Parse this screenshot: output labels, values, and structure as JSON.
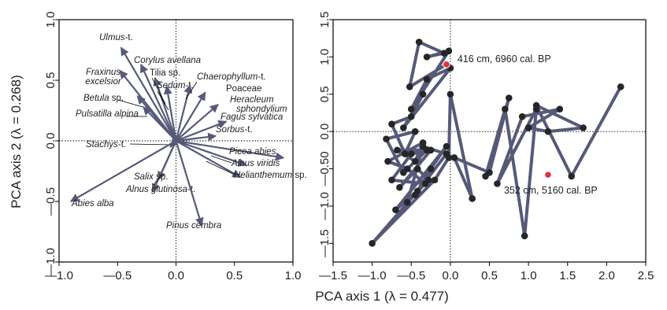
{
  "figure": {
    "ylabel": "PCA axis 2 (λ = 0.268)",
    "xlabel": "PCA axis 1 (λ = 0.477)"
  },
  "chart_data": [
    {
      "type": "biplot",
      "panel": "left",
      "xlim": [
        -1.0,
        1.0
      ],
      "ylim": [
        -1.0,
        1.0
      ],
      "xticks": [
        "—1.0",
        "—0.5",
        "0.0",
        "0.5",
        "1.0"
      ],
      "yticks": [
        "—1.0",
        "—0.5",
        "0.0",
        "0.5",
        "1.0"
      ],
      "zero_lines": true,
      "vectors": [
        {
          "label": "Ulmus-t.",
          "x": -0.47,
          "y": 0.77
        },
        {
          "label": "Corylus avellana",
          "x": -0.3,
          "y": 0.63
        },
        {
          "label": "Fraxinus excelsior",
          "x": -0.48,
          "y": 0.58
        },
        {
          "label": "Tilia sp.",
          "x": -0.18,
          "y": 0.52
        },
        {
          "label": "Sedum-t.",
          "x": -0.08,
          "y": 0.45
        },
        {
          "label": "Betula sp.",
          "x": -0.33,
          "y": 0.37
        },
        {
          "label": "Pulsatilla alpina",
          "x": -0.28,
          "y": 0.28
        },
        {
          "label": "Chaerophyllum-t.",
          "x": 0.12,
          "y": 0.46
        },
        {
          "label": "Poaceae",
          "x": 0.25,
          "y": 0.4
        },
        {
          "label": "Heracleum sphondylium",
          "x": 0.36,
          "y": 0.3
        },
        {
          "label": "Fagus sylvatica",
          "x": 0.43,
          "y": 0.16
        },
        {
          "label": "Sorbus-t.",
          "x": 0.34,
          "y": 0.04
        },
        {
          "label": "Stachys-t.",
          "x": -0.05,
          "y": -0.05
        },
        {
          "label": "Picea abies",
          "x": 0.92,
          "y": -0.14
        },
        {
          "label": "Alnus viridis",
          "x": 0.6,
          "y": -0.2
        },
        {
          "label": "Helianthemum sp.",
          "x": 0.55,
          "y": -0.3
        },
        {
          "label": "Salix sp.",
          "x": -0.15,
          "y": -0.32
        },
        {
          "label": "Alnus glutinosa-t.",
          "x": -0.2,
          "y": -0.42
        },
        {
          "label": "Abies alba",
          "x": -0.9,
          "y": -0.5
        },
        {
          "label": "Pinus cembra",
          "x": 0.22,
          "y": -0.7
        }
      ]
    },
    {
      "type": "line",
      "panel": "right",
      "xlim": [
        -1.5,
        2.5
      ],
      "ylim": [
        -1.75,
        1.5
      ],
      "xticks": [
        "—1.5",
        "—1.0",
        "—0.5",
        "0.0",
        "0.5",
        "1.0",
        "1.5",
        "2.0",
        "2.5"
      ],
      "yticks": [
        "—1.5",
        "—1.0",
        "—0.50",
        "0.0",
        "0.5",
        "1.0",
        "1.5"
      ],
      "zero_lines": true,
      "series": [
        {
          "x": [
            -0.05,
            -0.52,
            -0.4,
            -0.08,
            -0.3,
            -0.02,
            -0.5,
            -0.3,
            0.0,
            -0.6,
            -0.35,
            -0.5,
            -0.75,
            -0.58,
            -0.45,
            -0.82,
            -0.6,
            -0.3,
            -0.68,
            -0.45,
            -0.35,
            -0.8,
            -0.55,
            -0.32,
            -0.75,
            -0.5,
            -0.25,
            -0.65,
            -0.42,
            -0.28,
            -0.55,
            -0.35,
            -0.05,
            -0.45,
            -0.25,
            -0.05,
            -0.7,
            -0.42,
            -1.0,
            -0.2,
            -0.02,
            0.0,
            0.28,
            0.05,
            0.5,
            0.75,
            0.45,
            0.7,
            0.95,
            1.1,
            0.6,
            0.92,
            1.4,
            1.0,
            1.25,
            1.7,
            1.1,
            1.55,
            2.18
          ],
          "y": [
            0.9,
            0.6,
            1.2,
            1.05,
            1.0,
            1.08,
            0.3,
            0.7,
            0.85,
            0.05,
            0.5,
            0.2,
            0.1,
            -0.3,
            0.0,
            -0.1,
            -0.55,
            -0.25,
            -0.25,
            -0.4,
            -0.15,
            -0.4,
            -0.5,
            -0.7,
            -0.65,
            -0.3,
            -0.25,
            -0.75,
            -0.5,
            -0.65,
            -0.95,
            -0.2,
            -0.3,
            -0.85,
            -0.5,
            -0.2,
            -1.05,
            -0.8,
            -1.5,
            -0.65,
            -0.35,
            0.5,
            -0.9,
            -0.35,
            -0.55,
            0.45,
            -0.6,
            0.3,
            -1.4,
            0.3,
            -0.7,
            0.2,
            0.3,
            0.05,
            0.0,
            0.05,
            0.35,
            -0.6,
            0.6
          ]
        }
      ],
      "highlights": [
        {
          "label": "416 cm, 6960 cal. BP",
          "x": -0.05,
          "y": 0.9
        },
        {
          "label": "352 cm, 5160 cal. BP",
          "x": 1.25,
          "y": -0.58
        }
      ]
    }
  ]
}
